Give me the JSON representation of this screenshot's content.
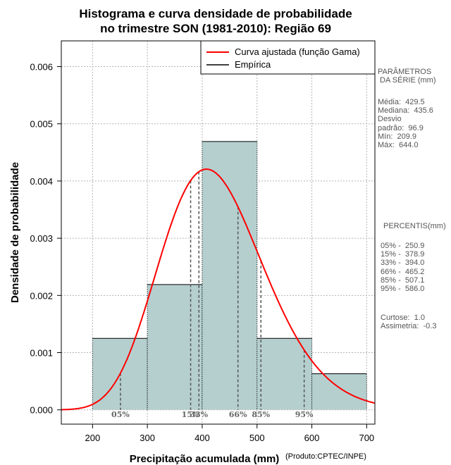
{
  "chart_data": {
    "type": "bar",
    "title": [
      "Histograma e curva densidade de probabilidade",
      "no trimestre SON (1981-2010): Região 69"
    ],
    "xlabel": "Precipitação acumulada (mm)",
    "ylabel": "Densidade de probabilidade",
    "credit": "(Produto:CPTEC/INPE)",
    "xlim": [
      143,
      715
    ],
    "ylim": [
      -0.00025,
      0.00645
    ],
    "x_ticks": [
      200,
      300,
      400,
      500,
      600,
      700
    ],
    "y_ticks": [
      0.0,
      0.001,
      0.002,
      0.003,
      0.004,
      0.005,
      0.006
    ],
    "y_tick_labels": [
      "0.000",
      "0.001",
      "0.002",
      "0.003",
      "0.004",
      "0.005",
      "0.006"
    ],
    "bins": [
      {
        "from": 200,
        "to": 300,
        "density": 0.00125
      },
      {
        "from": 300,
        "to": 400,
        "density": 0.00219
      },
      {
        "from": 400,
        "to": 500,
        "density": 0.00469
      },
      {
        "from": 500,
        "to": 600,
        "density": 0.00125
      },
      {
        "from": 600,
        "to": 700,
        "density": 0.00063
      }
    ],
    "bar_color": "#b5cfcf",
    "curve_color": "#ff0000",
    "gamma_fit": {
      "mean": 429.5,
      "sd": 96.9
    },
    "percentile_lines": [
      {
        "label": "05%",
        "value": 250.9
      },
      {
        "label": "15%",
        "value": 378.9
      },
      {
        "label": "33%",
        "value": 394.0
      },
      {
        "label": "66%",
        "value": 465.2
      },
      {
        "label": "85%",
        "value": 507.1
      },
      {
        "label": "95%",
        "value": 586.0
      }
    ],
    "legend": {
      "position": "top-right",
      "entries": [
        {
          "label": "Curva ajustada (função Gama)",
          "color": "#ff0000"
        },
        {
          "label": "Empírica",
          "color": "#000000"
        }
      ]
    },
    "grid": true
  },
  "side_panel": {
    "params_title": "PARÂMETROS\n DA SÉRIE (mm)",
    "params": "Média:  429.5\nMediana:  435.6\nDesvio\npadrão:  96.9\nMín:  209.9\nMáx:  644.0",
    "percentis_title": "PERCENTIS(mm)",
    "percentis": "05% -  250.9\n15% -  378.9\n33% -  394.0\n66% -  465.2\n85% -  507.1\n95% -  586.0",
    "stats": "Curtose:  1.0\nAssimetria:  -0.3"
  }
}
